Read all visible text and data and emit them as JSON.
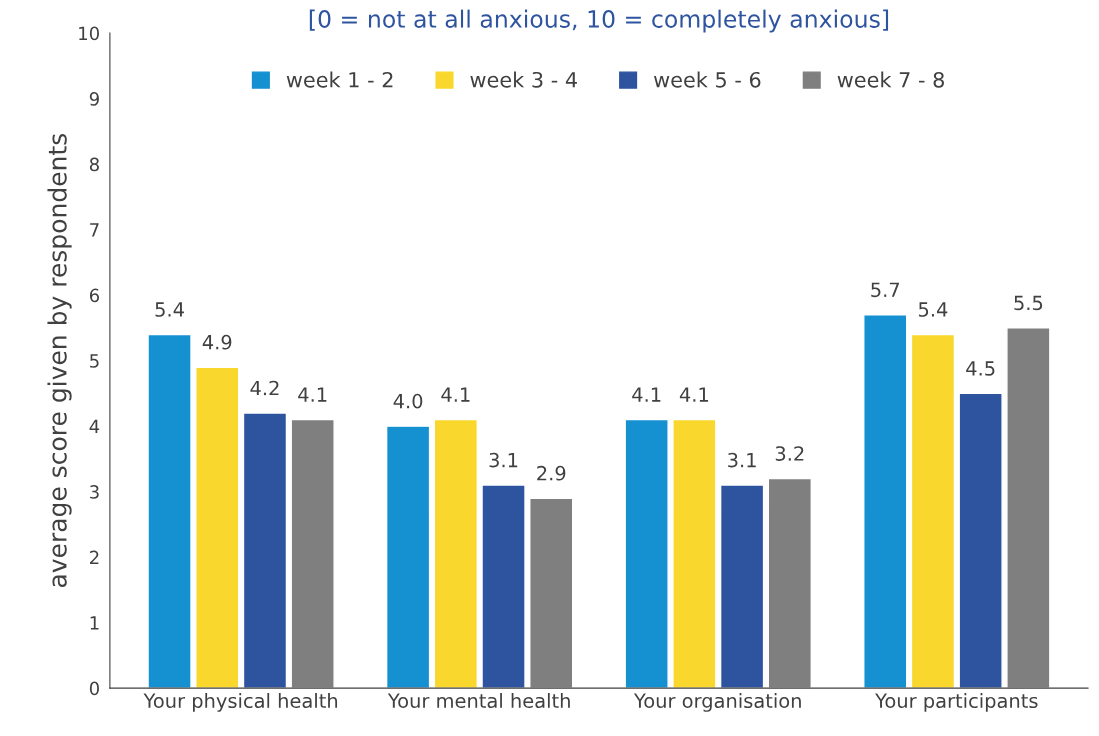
{
  "chart_data": {
    "type": "bar",
    "title": "[0 = not at all anxious, 10 = completely anxious]",
    "ylabel": "average score given by respondents",
    "categories": [
      "Your physical health",
      "Your mental health",
      "Your organisation",
      "Your participants"
    ],
    "series": [
      {
        "name": "week 1 - 2",
        "color": "#1591d1",
        "values": [
          5.4,
          4.0,
          4.1,
          5.7
        ],
        "value_labels": [
          "5.4",
          "4.0",
          "4.1",
          "5.7"
        ]
      },
      {
        "name": "week 3 - 4",
        "color": "#fad72c",
        "values": [
          4.9,
          4.1,
          4.1,
          5.4
        ],
        "value_labels": [
          "4.9",
          "4.1",
          "4.1",
          "5.4"
        ]
      },
      {
        "name": "week 5 - 6",
        "color": "#2e54a0",
        "values": [
          4.2,
          3.1,
          3.1,
          4.5
        ],
        "value_labels": [
          "4.2",
          "3.1",
          "3.1",
          "4.5"
        ]
      },
      {
        "name": "week 7 - 8",
        "color": "#7f7f7f",
        "values": [
          4.1,
          2.9,
          3.2,
          5.5
        ],
        "value_labels": [
          "4.1",
          "2.9",
          "3.2",
          "5.5"
        ]
      }
    ],
    "ylim": [
      0,
      10
    ],
    "yticks": [
      0,
      1,
      2,
      3,
      4,
      5,
      6,
      7,
      8,
      9,
      10
    ],
    "grid": false,
    "legend": "top"
  }
}
